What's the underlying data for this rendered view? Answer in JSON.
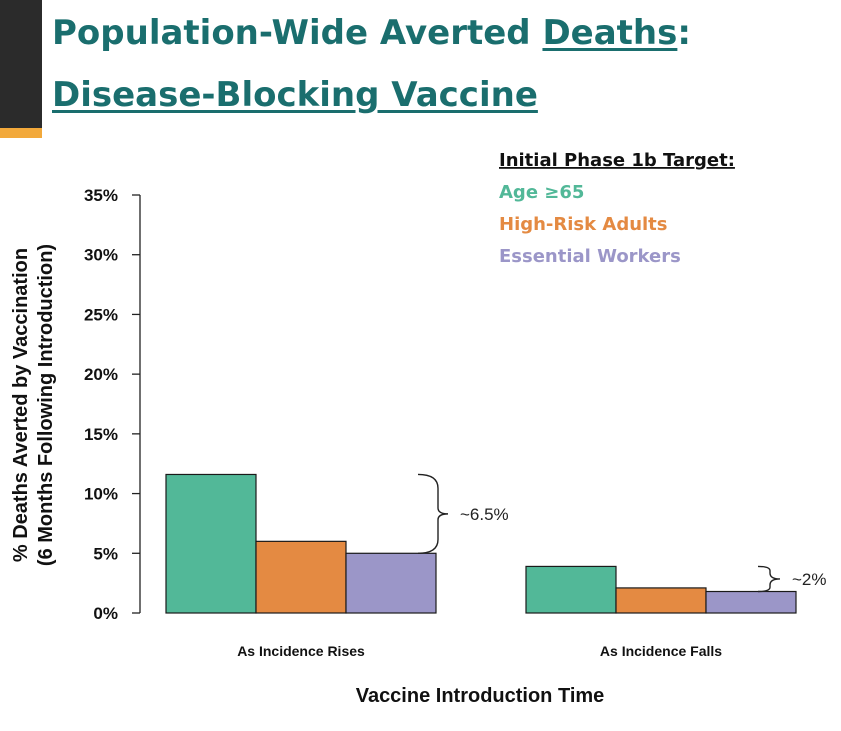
{
  "slide": {
    "title_part1": "Population-Wide Averted ",
    "title_part2": "Deaths",
    "title_part3": ":",
    "title_line2": "Disease-Blocking Vaccine"
  },
  "chart_data": {
    "type": "bar",
    "categories": [
      "As Incidence Rises",
      "As Incidence Falls"
    ],
    "series": [
      {
        "name": "Age ≥65",
        "color": "#52b898",
        "values": [
          11.6,
          3.9
        ]
      },
      {
        "name": "High-Risk Adults",
        "color": "#e48a42",
        "values": [
          6.0,
          2.1
        ]
      },
      {
        "name": "Essential Workers",
        "color": "#9b96c8",
        "values": [
          5.0,
          1.8
        ]
      }
    ],
    "ylim": [
      0,
      35
    ],
    "yticks": [
      0,
      5,
      10,
      15,
      20,
      25,
      30,
      35
    ],
    "ytick_labels": [
      "0%",
      "5%",
      "10%",
      "15%",
      "20%",
      "25%",
      "30%",
      "35%"
    ],
    "xlabel": "Vaccine Introduction Time",
    "ylabel_line1": "% Deaths Averted by Vaccination",
    "ylabel_line2": "(6 Months Following Introduction)",
    "legend_title": "Initial Phase 1b Target:",
    "legend_placement": "top-right",
    "annotations": [
      {
        "category": 0,
        "text": "~6.5%"
      },
      {
        "category": 1,
        "text": "~2%"
      }
    ],
    "grid": false
  }
}
